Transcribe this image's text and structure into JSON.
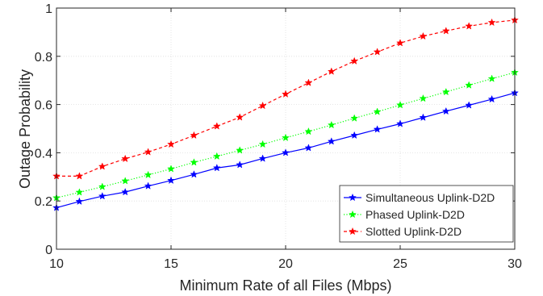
{
  "chart_data": {
    "type": "line",
    "xlabel": "Minimum Rate of all Files (Mbps)",
    "ylabel": "Outage Probability",
    "xlim": [
      10,
      30
    ],
    "ylim": [
      0,
      1
    ],
    "xticks": [
      10,
      15,
      20,
      25,
      30
    ],
    "yticks": [
      0,
      0.2,
      0.4,
      0.6,
      0.8,
      1
    ],
    "xtick_labels": [
      "10",
      "15",
      "20",
      "25",
      "30"
    ],
    "ytick_labels": [
      "0",
      "0.2",
      "0.4",
      "0.6",
      "0.8",
      "1"
    ],
    "grid": true,
    "legend_position": "bottom-right",
    "x": [
      10,
      11,
      12,
      13,
      14,
      15,
      16,
      17,
      18,
      19,
      20,
      21,
      22,
      23,
      24,
      25,
      26,
      27,
      28,
      29,
      30
    ],
    "series": [
      {
        "name": "Simultaneous Uplink-D2D",
        "color": "#0000ff",
        "line_style": "solid",
        "marker": "star",
        "values": [
          0.172,
          0.198,
          0.22,
          0.237,
          0.262,
          0.285,
          0.31,
          0.337,
          0.35,
          0.376,
          0.4,
          0.42,
          0.447,
          0.472,
          0.497,
          0.52,
          0.546,
          0.572,
          0.597,
          0.622,
          0.648
        ]
      },
      {
        "name": "Phased Uplink-D2D",
        "color": "#00ff00",
        "line_style": "dotted",
        "marker": "star",
        "values": [
          0.213,
          0.236,
          0.259,
          0.283,
          0.308,
          0.333,
          0.36,
          0.385,
          0.41,
          0.435,
          0.462,
          0.488,
          0.515,
          0.543,
          0.57,
          0.598,
          0.625,
          0.652,
          0.68,
          0.707,
          0.733
        ]
      },
      {
        "name": "Slotted Uplink-D2D",
        "color": "#ff0000",
        "line_style": "dashed",
        "marker": "star",
        "values": [
          0.303,
          0.303,
          0.343,
          0.375,
          0.403,
          0.435,
          0.472,
          0.51,
          0.547,
          0.595,
          0.643,
          0.69,
          0.737,
          0.78,
          0.818,
          0.855,
          0.883,
          0.905,
          0.925,
          0.94,
          0.95
        ]
      }
    ]
  }
}
